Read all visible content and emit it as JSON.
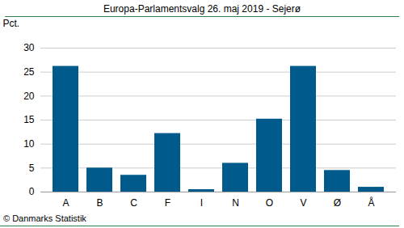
{
  "chart_data": {
    "type": "bar",
    "title": "Europa-Parlamentsvalg 26. maj 2019 - Sejerø",
    "y_label": "Pct.",
    "caption": "© Danmarks Statistik",
    "categories": [
      "A",
      "B",
      "C",
      "F",
      "I",
      "N",
      "O",
      "V",
      "Ø",
      "Å"
    ],
    "values": [
      26.2,
      5.0,
      3.5,
      12.2,
      0.5,
      6.0,
      15.2,
      26.2,
      4.5,
      1.0
    ],
    "color": "#005b8c",
    "ylim": [
      0,
      30
    ],
    "yticks": [
      0,
      5,
      10,
      15,
      20,
      25,
      30
    ],
    "grid": true
  }
}
